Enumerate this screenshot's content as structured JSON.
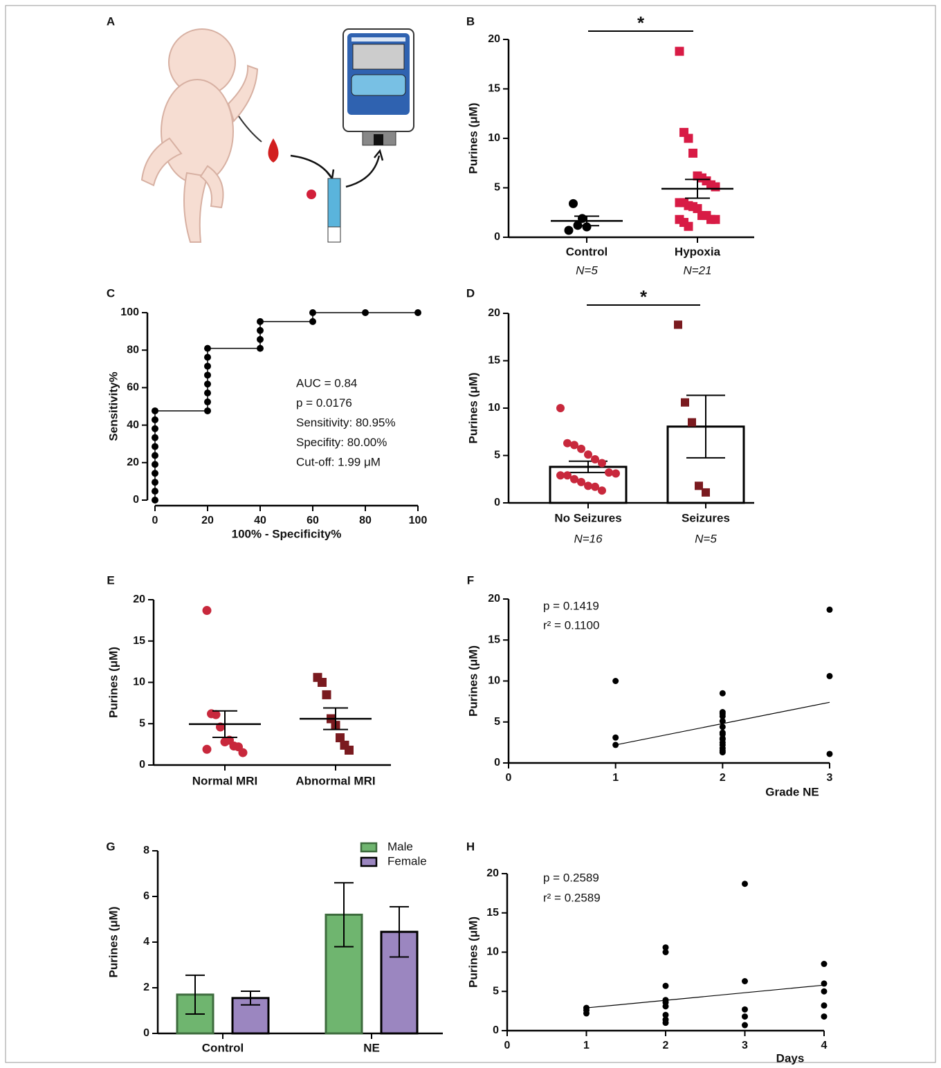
{
  "illustration": {
    "label": "A"
  },
  "chart_data": [
    {
      "label": "B",
      "type": "dot_plot",
      "y_label": "Purines (μM)",
      "categories": [
        "Control",
        "Hypoxia"
      ],
      "sample_sizes": [
        "N=5",
        "N=21"
      ],
      "points": [
        [
          0.7,
          3.4,
          1.2,
          1.9,
          1.05
        ],
        [
          18.8,
          10.6,
          10.0,
          8.5,
          6.2,
          6.0,
          5.7,
          5.3,
          5.1,
          3.5,
          3.5,
          3.2,
          3.1,
          2.9,
          2.2,
          2.2,
          1.8,
          1.8,
          1.8,
          1.5,
          1.1
        ]
      ],
      "means": [
        1.65,
        4.9
      ],
      "sem": [
        0.48,
        0.95
      ],
      "colors": [
        "#000000",
        "#d81b45"
      ],
      "markers": [
        "circle",
        "square"
      ],
      "ylim": [
        0,
        20
      ],
      "yticks": [
        0,
        5,
        10,
        15,
        20
      ],
      "significance": "*"
    },
    {
      "label": "C",
      "type": "line",
      "x_label": "100% - Specificity%",
      "y_label": "Sensitivity%",
      "x": [
        0,
        0,
        0,
        0,
        0,
        0,
        0,
        0,
        0,
        0,
        0,
        20,
        20,
        20,
        20,
        20,
        20,
        20,
        20,
        40,
        40,
        40,
        40,
        60,
        60,
        80,
        100
      ],
      "values": [
        0,
        4.76,
        9.52,
        14.29,
        19.05,
        23.81,
        28.57,
        33.33,
        38.1,
        42.86,
        47.62,
        47.62,
        52.38,
        57.14,
        61.9,
        66.67,
        71.43,
        76.19,
        80.95,
        80.95,
        85.71,
        90.48,
        95.24,
        95.24,
        100,
        100,
        100
      ],
      "color": "#000000",
      "markers": true,
      "xlim": [
        0,
        100
      ],
      "xticks": [
        0,
        20,
        40,
        60,
        80,
        100
      ],
      "ylim": [
        0,
        100
      ],
      "yticks": [
        0,
        20,
        40,
        60,
        80,
        100
      ],
      "annotations": [
        "AUC = 0.84",
        "p = 0.0176",
        "Sensitivity: 80.95%",
        "Specifity: 80.00%",
        "Cut-off: 1.99 μM"
      ]
    },
    {
      "label": "D",
      "type": "bar_dot",
      "y_label": "Purines (μM)",
      "categories": [
        "No Seizures",
        "Seizures"
      ],
      "sample_sizes": [
        "N=16",
        "N=5"
      ],
      "points": [
        [
          10.0,
          6.3,
          6.1,
          5.7,
          5.1,
          4.6,
          4.2,
          3.2,
          3.1,
          2.9,
          2.9,
          2.5,
          2.2,
          1.8,
          1.7,
          1.3
        ],
        [
          18.8,
          10.6,
          8.5,
          1.8,
          1.1
        ]
      ],
      "means": [
        3.8,
        8.05
      ],
      "sem": [
        0.6,
        3.3
      ],
      "colors": [
        "#c8283c",
        "#7a1a1f"
      ],
      "markers": [
        "circle",
        "square"
      ],
      "ylim": [
        0,
        20
      ],
      "yticks": [
        0,
        5,
        10,
        15,
        20
      ],
      "significance": "*"
    },
    {
      "label": "E",
      "type": "dot_plot",
      "y_label": "Purines (μM)",
      "categories": [
        "Normal MRI",
        "Abnormal MRI"
      ],
      "points": [
        [
          18.7,
          6.2,
          6.1,
          4.6,
          2.8,
          3.0,
          2.3,
          2.2,
          1.5,
          1.9
        ],
        [
          10.6,
          10.0,
          8.5,
          5.6,
          4.8,
          3.3,
          2.4,
          1.8
        ]
      ],
      "means": [
        4.95,
        5.6
      ],
      "sem": [
        1.6,
        1.3
      ],
      "colors": [
        "#c8283c",
        "#7a1a1f"
      ],
      "markers": [
        "circle",
        "square"
      ],
      "ylim": [
        0,
        20
      ],
      "yticks": [
        0,
        5,
        10,
        15,
        20
      ]
    },
    {
      "label": "F",
      "type": "scatter",
      "x_label": "Grade NE",
      "y_label": "Purines (μM)",
      "x": [
        1,
        1,
        1,
        2,
        2,
        2,
        2,
        2,
        2,
        2,
        2,
        2,
        2,
        2,
        2,
        2,
        2,
        2,
        3,
        3,
        3
      ],
      "y": [
        10.0,
        3.1,
        2.2,
        8.5,
        6.2,
        6.0,
        5.7,
        5.1,
        4.4,
        3.7,
        3.5,
        3.0,
        2.9,
        2.5,
        2.2,
        1.8,
        1.5,
        1.3,
        18.7,
        10.6,
        1.1
      ],
      "fit": {
        "x": [
          1,
          3
        ],
        "y": [
          2.2,
          7.4
        ]
      },
      "color": "#000000",
      "xlim": [
        0,
        3
      ],
      "xticks": [
        0,
        1,
        2,
        3
      ],
      "ylim": [
        0,
        20
      ],
      "yticks": [
        0,
        5,
        10,
        15,
        20
      ],
      "annotations": [
        "p = 0.1419",
        "r² = 0.1100"
      ]
    },
    {
      "label": "G",
      "type": "bar",
      "y_label": "Purines (μM)",
      "categories": [
        "Control",
        "NE"
      ],
      "series": [
        {
          "name": "Male",
          "color": "#6fb56f",
          "values": [
            1.7,
            5.2
          ],
          "errors": [
            0.85,
            1.4
          ]
        },
        {
          "name": "Female",
          "color": "#9b86c0",
          "values": [
            1.55,
            4.45
          ],
          "errors": [
            0.3,
            1.1
          ]
        }
      ],
      "ylim": [
        0,
        8
      ],
      "yticks": [
        0,
        2,
        4,
        6,
        8
      ],
      "legend": "upper right"
    },
    {
      "label": "H",
      "type": "scatter",
      "x_label": "Days",
      "y_label": "Purines (μM)",
      "x": [
        1,
        1,
        1,
        2,
        2,
        2,
        2,
        2,
        2,
        2,
        2,
        2,
        3,
        3,
        3,
        3,
        3,
        4,
        4,
        4,
        4,
        4
      ],
      "y": [
        2.9,
        2.6,
        2.2,
        10.6,
        10.0,
        5.7,
        3.9,
        3.6,
        3.1,
        2.0,
        1.4,
        1.0,
        18.7,
        6.3,
        2.7,
        1.8,
        0.7,
        8.5,
        6.0,
        5.0,
        3.2,
        1.8
      ],
      "fit": {
        "x": [
          1,
          4
        ],
        "y": [
          2.9,
          5.8
        ]
      },
      "color": "#000000",
      "xlim": [
        0,
        4
      ],
      "xticks": [
        0,
        1,
        2,
        3,
        4
      ],
      "ylim": [
        0,
        20
      ],
      "yticks": [
        0,
        5,
        10,
        15,
        20
      ],
      "annotations": [
        "p = 0.2589",
        "r² = 0.2589"
      ]
    }
  ]
}
